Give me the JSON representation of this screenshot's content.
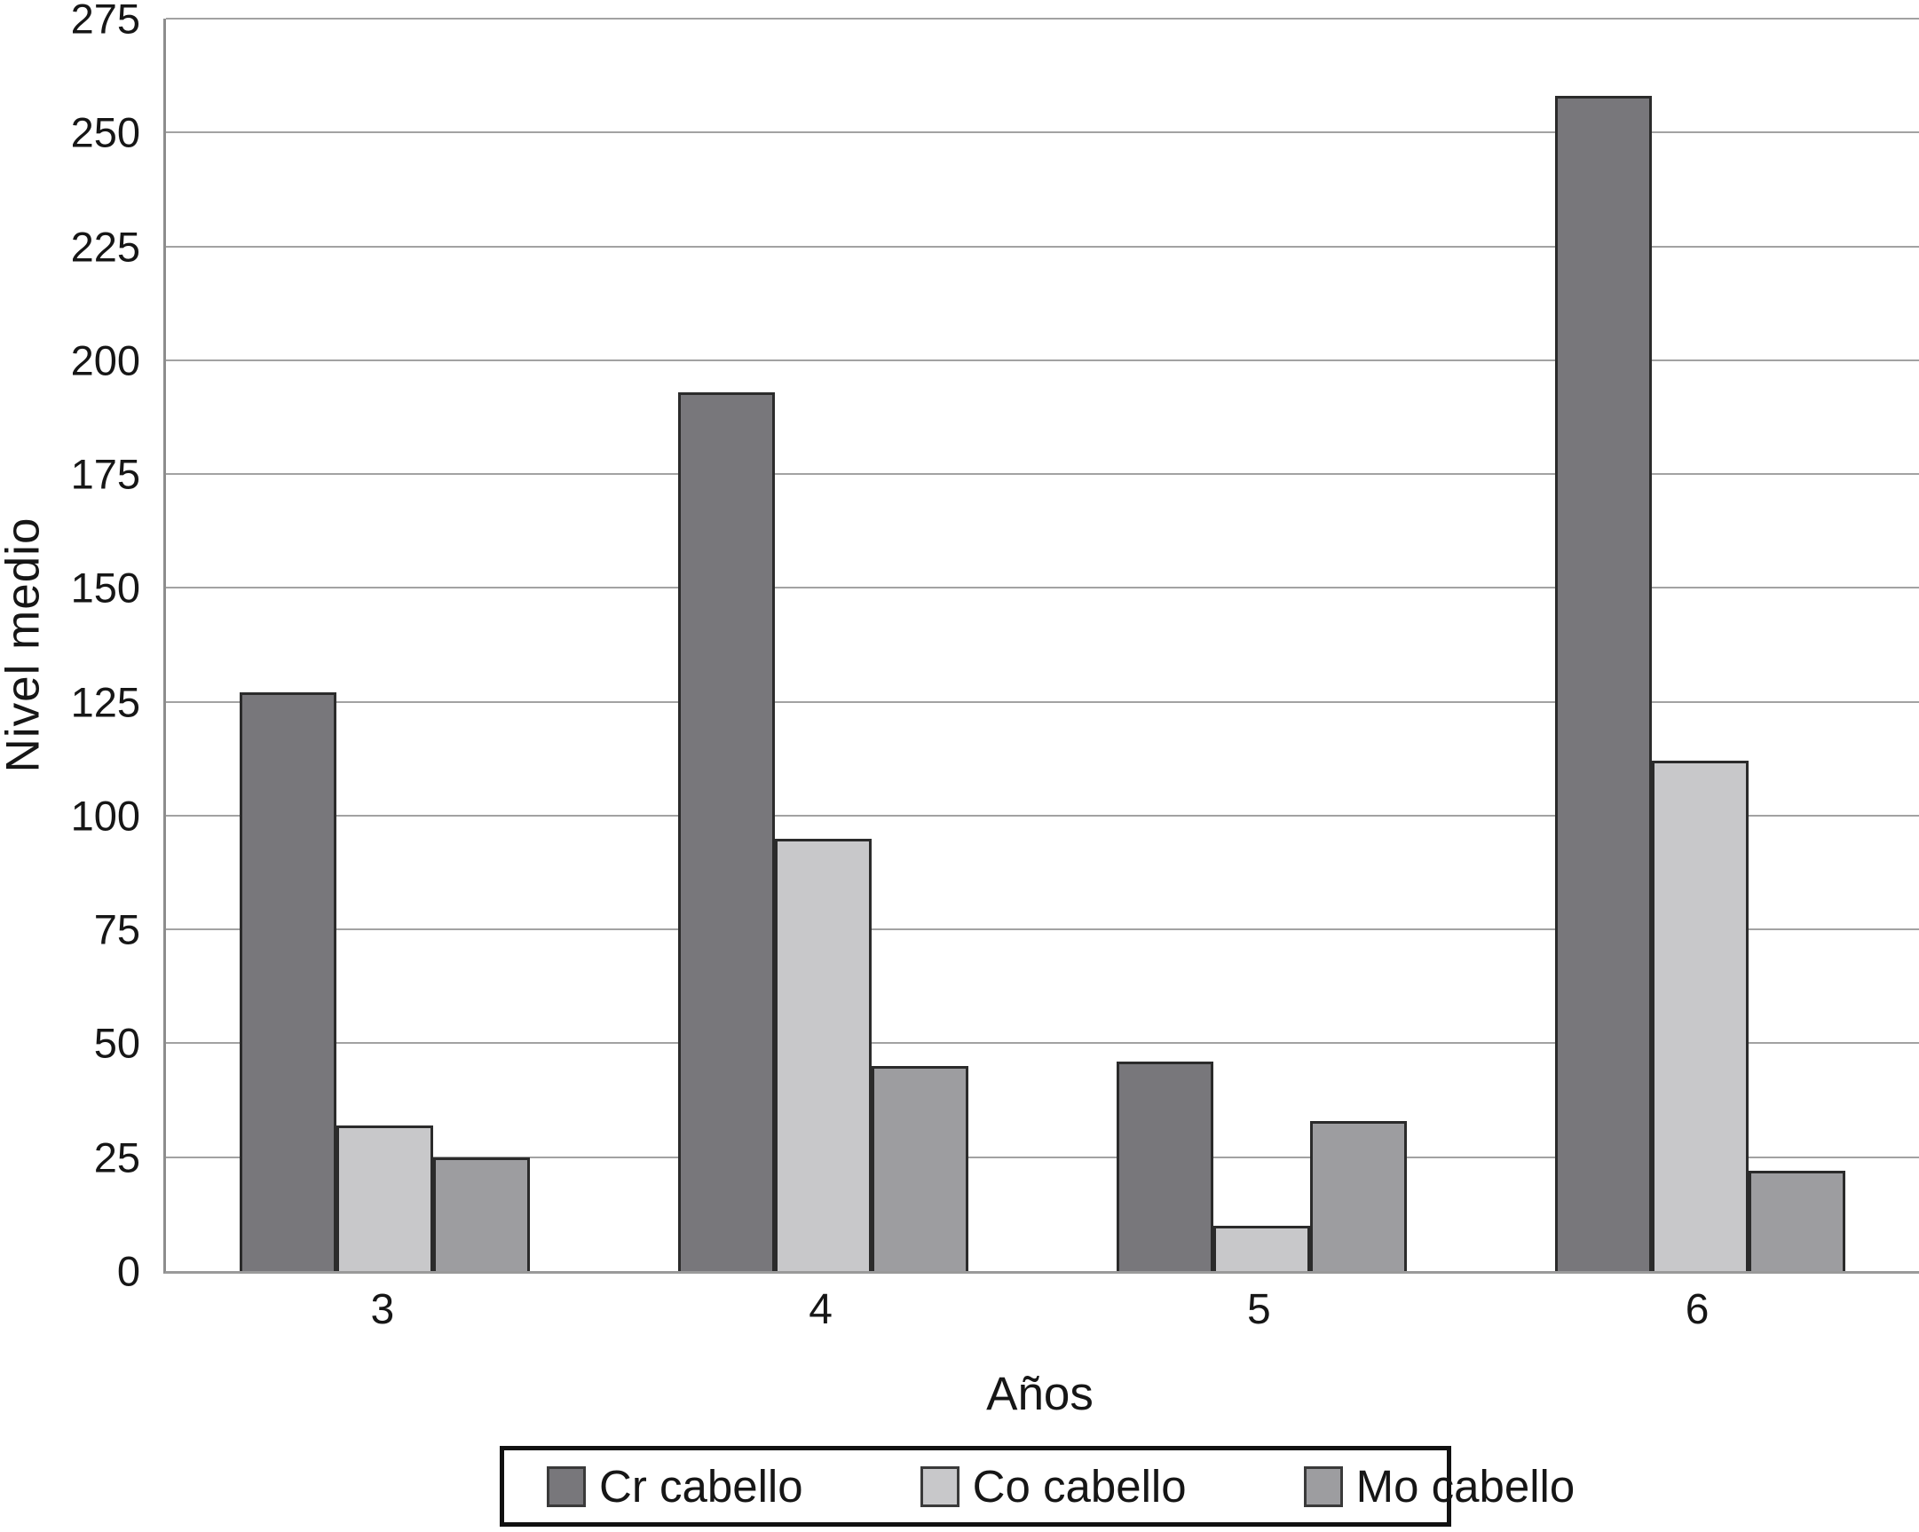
{
  "chart_data": {
    "type": "bar",
    "title": "",
    "xlabel": "Años",
    "ylabel": "Nivel medio",
    "categories": [
      "3",
      "4",
      "5",
      "6"
    ],
    "series": [
      {
        "name": "Cr cabello",
        "color": "#78777b",
        "values": [
          127,
          193,
          46,
          258
        ]
      },
      {
        "name": "Co cabello",
        "color": "#c8c8ca",
        "values": [
          32,
          95,
          10,
          112
        ]
      },
      {
        "name": "Mo cabello",
        "color": "#9d9da0",
        "values": [
          25,
          45,
          33,
          22
        ]
      }
    ],
    "ylim": [
      0,
      275
    ],
    "ytick_step": 25,
    "yticks": [
      0,
      25,
      50,
      75,
      100,
      125,
      150,
      175,
      200,
      225,
      250,
      275
    ],
    "grid": true,
    "legend_position": "bottom"
  },
  "colors": {
    "background": "#ffffff",
    "gridline": "#a2a2a2",
    "axis_line": "#8d8d8d",
    "bar_border": "#2b2b2b",
    "text": "#161616",
    "legend_border": "#111111"
  }
}
